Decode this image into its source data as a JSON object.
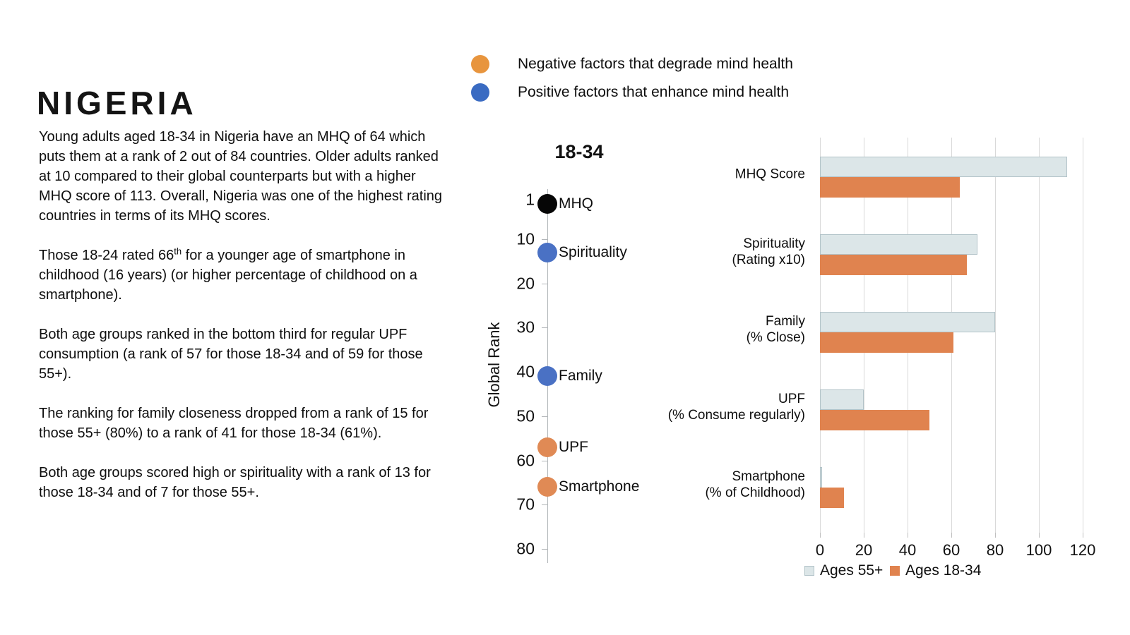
{
  "title": "NIGERIA",
  "paragraphs": {
    "p1": "Young adults aged 18-34 in Nigeria have an MHQ of 64 which puts them at a rank of 2 out of 84 countries. Older adults ranked at 10 compared to their global counterparts but with a higher MHQ score of 113. Overall, Nigeria was one of the highest rating countries in terms of its MHQ scores.",
    "p2_pre": "Those 18-24 rated 66",
    "p2_sup": "th",
    "p2_post": " for a younger age of smartphone in childhood (16 years) (or higher percentage of childhood on a smartphone).",
    "p3": "Both age groups ranked in the bottom third for regular UPF consumption (a rank of 57 for those 18-34 and of 59 for those 55+).",
    "p4": "The ranking for family closeness dropped from a rank of 15 for those 55+ (80%) to a rank of 41 for those 18-34 (61%).",
    "p5": "Both age groups scored high or spirituality with a rank of 13 for those 18-34 and of 7 for those 55+."
  },
  "factor_legend": {
    "negative": {
      "label": "Negative factors that degrade mind health",
      "color": "#e8953e"
    },
    "positive": {
      "label": "Positive factors that enhance mind health",
      "color": "#3a6bc2"
    }
  },
  "chart_data": [
    {
      "type": "scatter",
      "title": "18-34",
      "ylabel": "Global Rank",
      "y_axis": {
        "min": 1,
        "max": 80,
        "direction": "rank 1 at top",
        "ticks": [
          1,
          10,
          20,
          30,
          40,
          50,
          60,
          70,
          80
        ]
      },
      "points": [
        {
          "label": "MHQ",
          "rank": 2,
          "factor": "overall",
          "color": "#060606"
        },
        {
          "label": "Spirituality",
          "rank": 13,
          "factor": "positive",
          "color": "#4a71c4"
        },
        {
          "label": "Family",
          "rank": 41,
          "factor": "positive",
          "color": "#4a71c4"
        },
        {
          "label": "UPF",
          "rank": 57,
          "factor": "negative",
          "color": "#e08a55"
        },
        {
          "label": "Smartphone",
          "rank": 66,
          "factor": "negative",
          "color": "#e08a55"
        }
      ]
    },
    {
      "type": "bar",
      "orientation": "horizontal",
      "categories": [
        [
          "MHQ Score"
        ],
        [
          "Spirituality",
          "(Rating x10)"
        ],
        [
          "Family",
          "(% Close)"
        ],
        [
          "UPF",
          "(% Consume regularly)"
        ],
        [
          "Smartphone",
          "(% of Childhood)"
        ]
      ],
      "series": [
        {
          "name": "Ages 55+",
          "color": "#dce6e8",
          "border": "#b2c3c8",
          "values": [
            113,
            72,
            80,
            20,
            1
          ]
        },
        {
          "name": "Ages 18-34",
          "color": "#e0834f",
          "border": "#e0834f",
          "values": [
            64,
            67,
            61,
            50,
            11
          ]
        }
      ],
      "xlim": [
        0,
        120
      ],
      "x_ticks": [
        0,
        20,
        40,
        60,
        80,
        100,
        120
      ],
      "grid": true,
      "legend_position": "bottom"
    }
  ]
}
